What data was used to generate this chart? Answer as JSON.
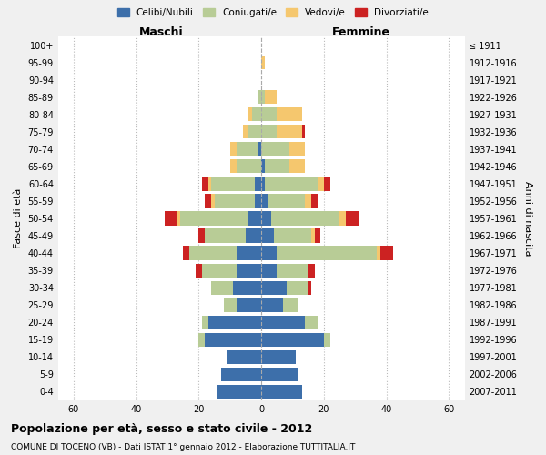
{
  "age_groups": [
    "0-4",
    "5-9",
    "10-14",
    "15-19",
    "20-24",
    "25-29",
    "30-34",
    "35-39",
    "40-44",
    "45-49",
    "50-54",
    "55-59",
    "60-64",
    "65-69",
    "70-74",
    "75-79",
    "80-84",
    "85-89",
    "90-94",
    "95-99",
    "100+"
  ],
  "birth_years": [
    "2007-2011",
    "2002-2006",
    "1997-2001",
    "1992-1996",
    "1987-1991",
    "1982-1986",
    "1977-1981",
    "1972-1976",
    "1967-1971",
    "1962-1966",
    "1957-1961",
    "1952-1956",
    "1947-1951",
    "1942-1946",
    "1937-1941",
    "1932-1936",
    "1927-1931",
    "1922-1926",
    "1917-1921",
    "1912-1916",
    "≤ 1911"
  ],
  "male": {
    "celibi": [
      14,
      13,
      11,
      18,
      17,
      8,
      9,
      8,
      8,
      5,
      4,
      2,
      2,
      0,
      1,
      0,
      0,
      0,
      0,
      0,
      0
    ],
    "coniugati": [
      0,
      0,
      0,
      2,
      2,
      4,
      7,
      11,
      15,
      13,
      22,
      13,
      14,
      8,
      7,
      4,
      3,
      1,
      0,
      0,
      0
    ],
    "vedovi": [
      0,
      0,
      0,
      0,
      0,
      0,
      0,
      0,
      0,
      0,
      1,
      1,
      1,
      2,
      2,
      2,
      1,
      0,
      0,
      0,
      0
    ],
    "divorziati": [
      0,
      0,
      0,
      0,
      0,
      0,
      0,
      2,
      2,
      2,
      4,
      2,
      2,
      0,
      0,
      0,
      0,
      0,
      0,
      0,
      0
    ]
  },
  "female": {
    "nubili": [
      13,
      12,
      11,
      20,
      14,
      7,
      8,
      5,
      5,
      4,
      3,
      2,
      1,
      1,
      0,
      0,
      0,
      0,
      0,
      0,
      0
    ],
    "coniugate": [
      0,
      0,
      0,
      2,
      4,
      5,
      7,
      10,
      32,
      12,
      22,
      12,
      17,
      8,
      9,
      5,
      5,
      1,
      0,
      0,
      0
    ],
    "vedove": [
      0,
      0,
      0,
      0,
      0,
      0,
      0,
      0,
      1,
      1,
      2,
      2,
      2,
      5,
      5,
      8,
      8,
      4,
      0,
      1,
      0
    ],
    "divorziate": [
      0,
      0,
      0,
      0,
      0,
      0,
      1,
      2,
      4,
      2,
      4,
      2,
      2,
      0,
      0,
      1,
      0,
      0,
      0,
      0,
      0
    ]
  },
  "color_celibi": "#3d6faa",
  "color_coniugati": "#b8cc96",
  "color_vedovi": "#f5c76e",
  "color_divorziati": "#cc2222",
  "xlim": 65,
  "title": "Popolazione per età, sesso e stato civile - 2012",
  "subtitle": "COMUNE DI TOCENO (VB) - Dati ISTAT 1° gennaio 2012 - Elaborazione TUTTITALIA.IT",
  "ylabel": "Fasce di età",
  "ylabel_right": "Anni di nascita",
  "label_maschi": "Maschi",
  "label_femmine": "Femmine",
  "legend_labels": [
    "Celibi/Nubili",
    "Coniugati/e",
    "Vedovi/e",
    "Divorziati/e"
  ],
  "bg_color": "#f0f0f0",
  "bar_bg_color": "#ffffff"
}
